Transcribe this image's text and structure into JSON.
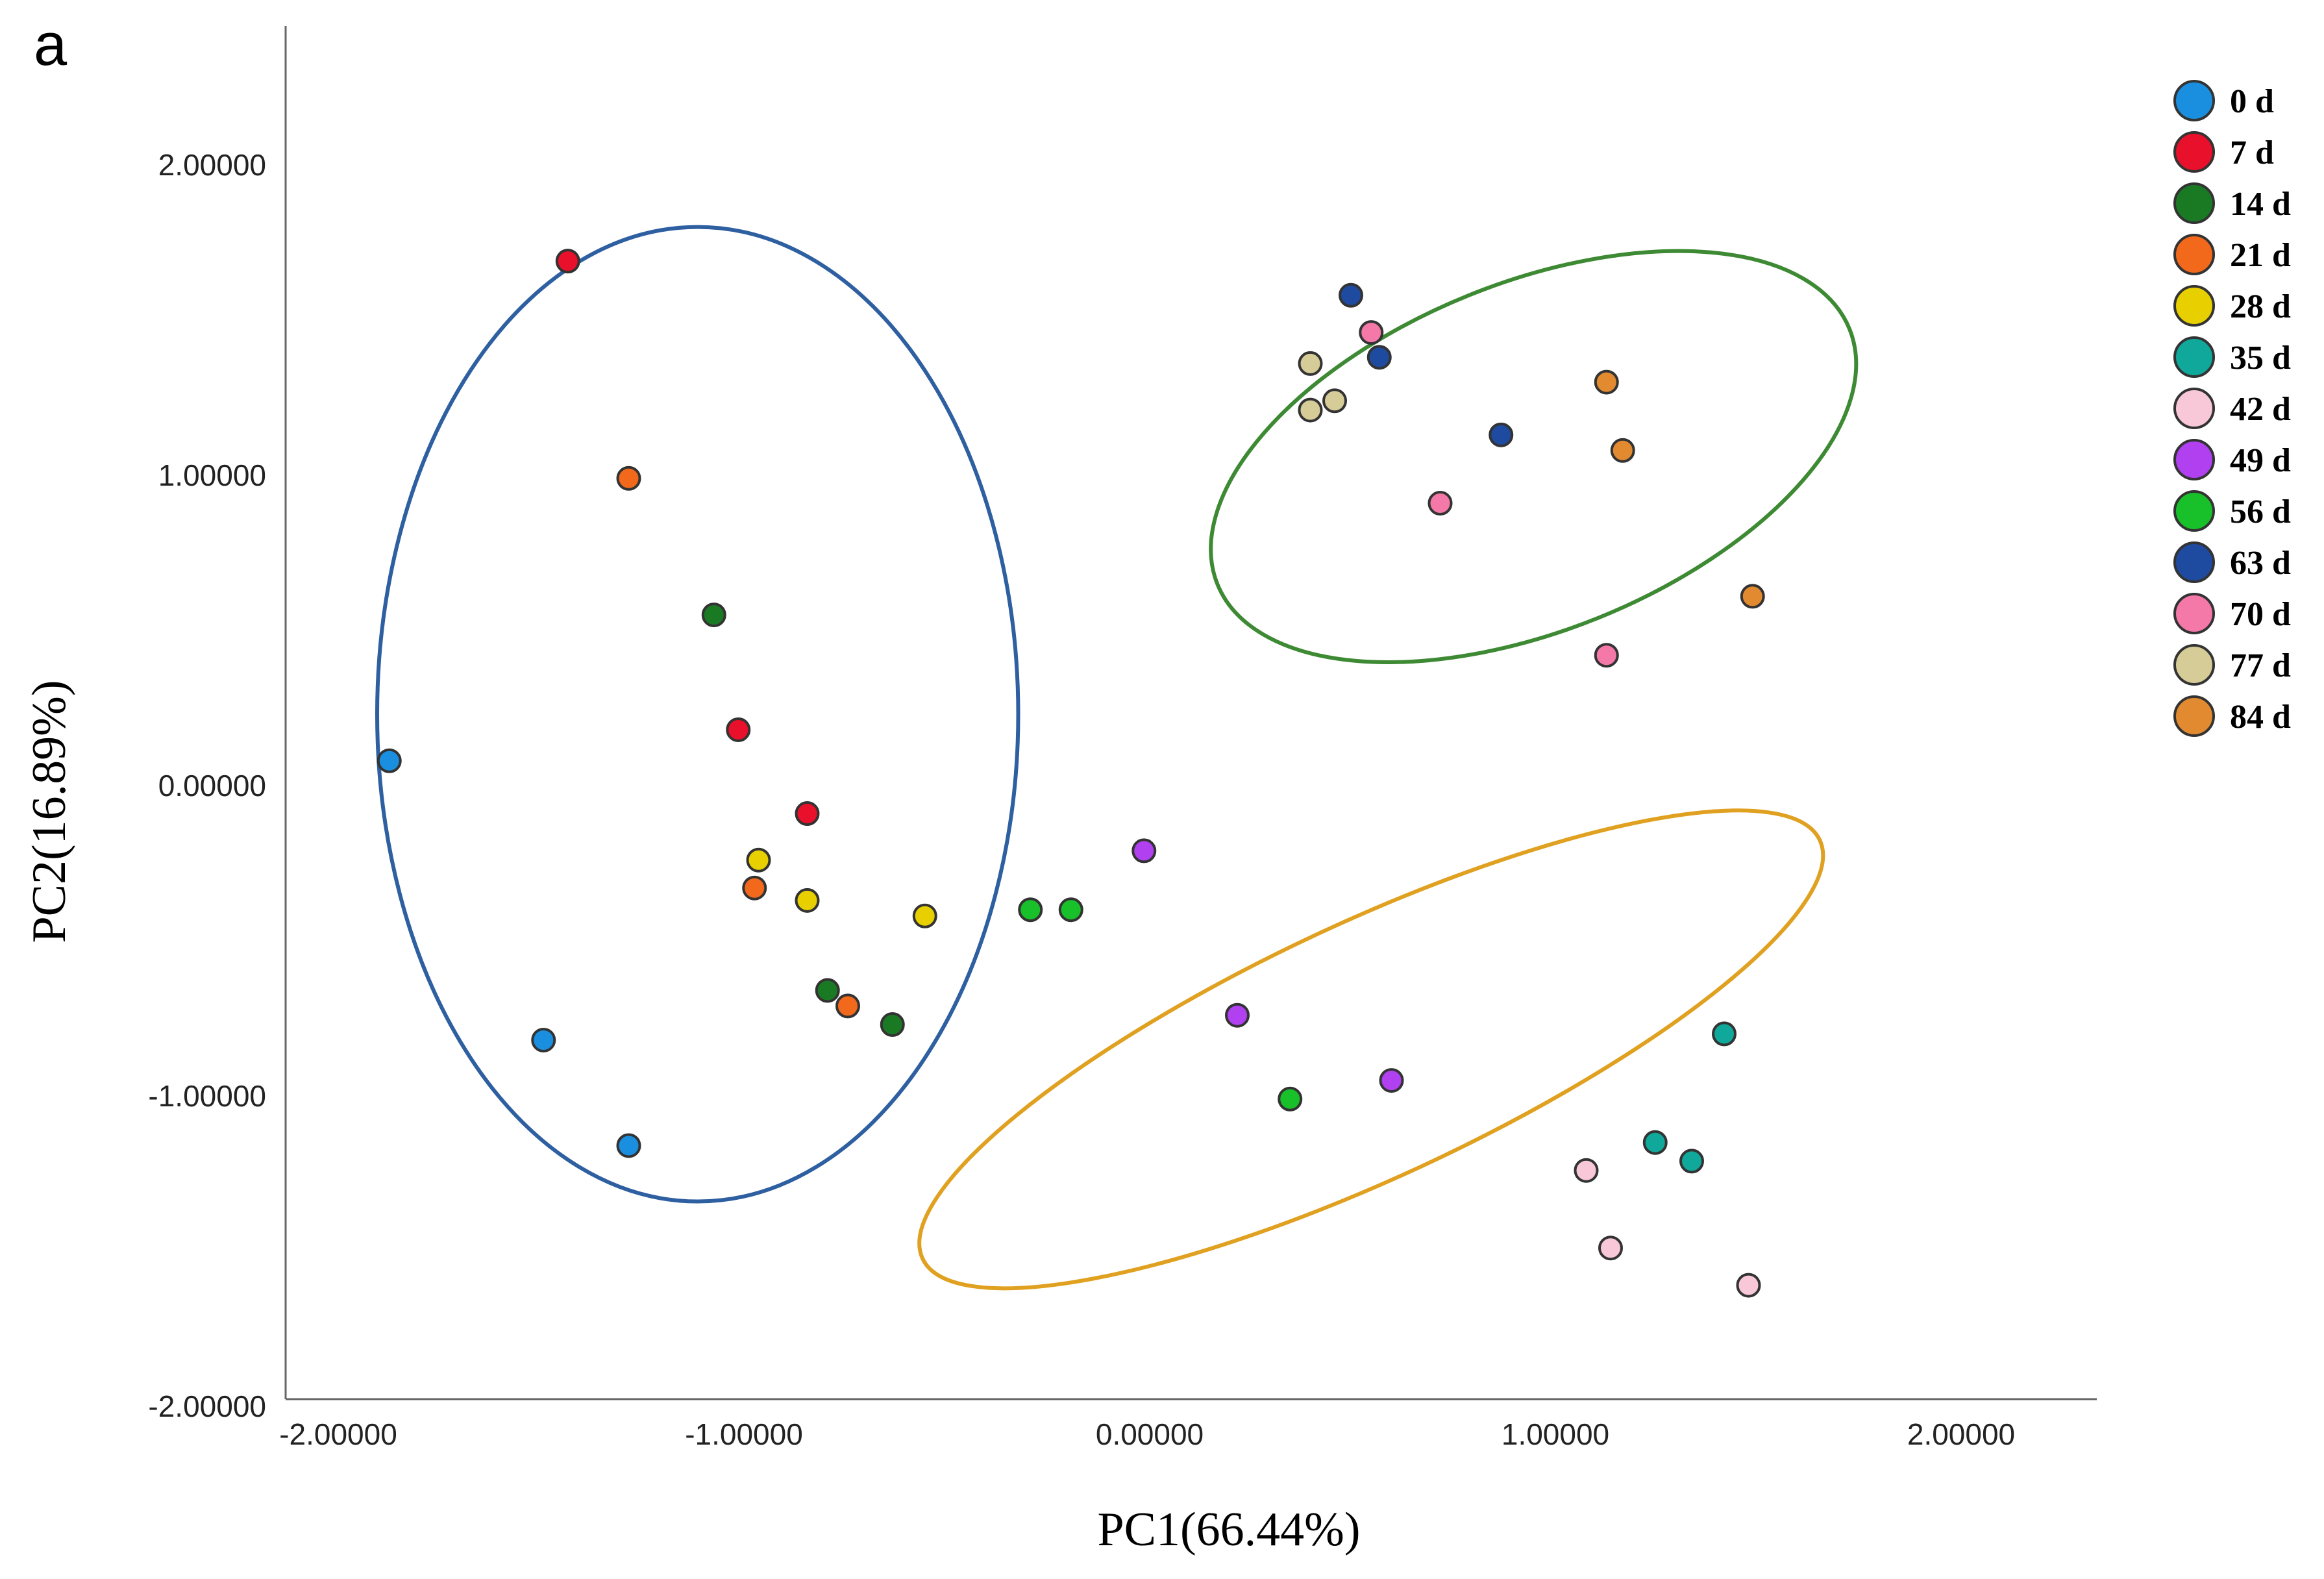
{
  "panel_label": "a",
  "chart_data": {
    "type": "scatter",
    "title": "",
    "xlabel": "PC1(66.44%)",
    "ylabel": "PC2(16.89%)",
    "xlim": [
      -2.3,
      2.3
    ],
    "ylim": [
      -2.0,
      2.45
    ],
    "xticks": [
      -2,
      -1,
      0,
      1,
      2
    ],
    "xtick_labels": [
      "-2.00000",
      "-1.00000",
      "0.00000",
      "1.00000",
      "2.00000"
    ],
    "yticks": [
      -2,
      -1,
      0,
      1,
      2
    ],
    "ytick_labels": [
      "-2.00000",
      "-1.00000",
      "0.00000",
      "1.00000",
      "2.00000"
    ],
    "legend_position": "top-right",
    "series": [
      {
        "name": "0 d",
        "color": "#1a8fe0",
        "points": [
          [
            -1.89,
            0.08
          ],
          [
            -1.51,
            -0.82
          ],
          [
            -1.3,
            -1.16
          ]
        ]
      },
      {
        "name": "7 d",
        "color": "#e8102a",
        "points": [
          [
            -1.45,
            1.69
          ],
          [
            -1.03,
            0.18
          ],
          [
            -0.86,
            -0.09
          ]
        ]
      },
      {
        "name": "14 d",
        "color": "#1a7a24",
        "points": [
          [
            -1.09,
            0.55
          ],
          [
            -0.81,
            -0.66
          ],
          [
            -0.65,
            -0.77
          ]
        ]
      },
      {
        "name": "21 d",
        "color": "#f2691c",
        "points": [
          [
            -1.3,
            0.99
          ],
          [
            -0.99,
            -0.33
          ],
          [
            -0.76,
            -0.71
          ]
        ]
      },
      {
        "name": "28 d",
        "color": "#e8d000",
        "points": [
          [
            -0.98,
            -0.24
          ],
          [
            -0.86,
            -0.37
          ],
          [
            -0.57,
            -0.42
          ]
        ]
      },
      {
        "name": "35 d",
        "color": "#0fa89a",
        "points": [
          [
            1.4,
            -0.8
          ],
          [
            1.23,
            -1.15
          ],
          [
            1.32,
            -1.21
          ]
        ]
      },
      {
        "name": "42 d",
        "color": "#f8c8d8",
        "points": [
          [
            1.06,
            -1.24
          ],
          [
            1.12,
            -1.49
          ],
          [
            1.46,
            -1.61
          ]
        ]
      },
      {
        "name": "49 d",
        "color": "#b040f0",
        "points": [
          [
            -0.03,
            -0.21
          ],
          [
            0.2,
            -0.74
          ],
          [
            0.58,
            -0.95
          ]
        ]
      },
      {
        "name": "56 d",
        "color": "#18c02a",
        "points": [
          [
            -0.31,
            -0.4
          ],
          [
            -0.21,
            -0.4
          ],
          [
            0.33,
            -1.01
          ]
        ]
      },
      {
        "name": "63 d",
        "color": "#1e4aa0",
        "points": [
          [
            0.48,
            1.58
          ],
          [
            0.55,
            1.38
          ],
          [
            0.85,
            1.13
          ]
        ]
      },
      {
        "name": "70 d",
        "color": "#f478a8",
        "points": [
          [
            0.53,
            1.46
          ],
          [
            0.7,
            0.91
          ],
          [
            1.11,
            0.42
          ]
        ]
      },
      {
        "name": "77 d",
        "color": "#d6cc98",
        "points": [
          [
            0.38,
            1.36
          ],
          [
            0.38,
            1.21
          ],
          [
            0.44,
            1.24
          ]
        ]
      },
      {
        "name": "84 d",
        "color": "#e28a30",
        "points": [
          [
            1.11,
            1.3
          ],
          [
            1.15,
            1.08
          ],
          [
            1.47,
            0.61
          ]
        ]
      }
    ],
    "ellipses": [
      {
        "color": "#2e5fa0",
        "center": [
          -1.13,
          0.23
        ],
        "semi_axes": [
          0.79,
          1.57
        ],
        "rotation_deg": 0
      },
      {
        "color": "#3e8a34",
        "center": [
          0.93,
          1.06
        ],
        "semi_axes": [
          0.84,
          0.56
        ],
        "rotation_deg": -22
      },
      {
        "color": "#e0a020",
        "center": [
          0.53,
          -0.85
        ],
        "semi_axes": [
          1.22,
          0.41
        ],
        "rotation_deg": -25
      }
    ]
  }
}
